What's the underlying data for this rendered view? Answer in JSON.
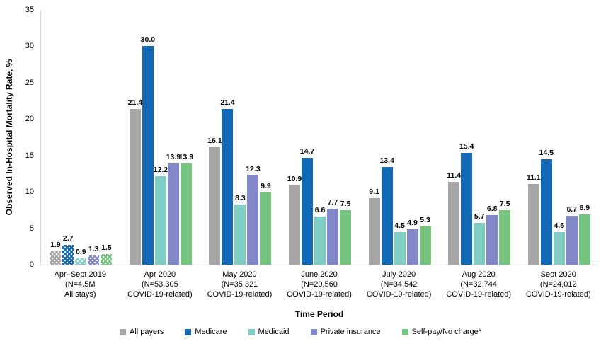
{
  "chart_data": {
    "type": "bar",
    "title": "",
    "xlabel": "Time Period",
    "ylabel": "Observed In-Hospital Mortality Rate, %",
    "ylim": [
      0,
      35
    ],
    "yticks": [
      0,
      5,
      10,
      15,
      20,
      25,
      30,
      35
    ],
    "grid": false,
    "legend_position": "bottom",
    "value_label_format": "one-decimal",
    "categories": [
      {
        "lines": [
          "Apr–Sept 2019",
          "(N=4.5M",
          "All stays)"
        ],
        "patterned": true
      },
      {
        "lines": [
          "Apr 2020",
          "(N=53,305",
          "COVID-19-related)"
        ],
        "patterned": false
      },
      {
        "lines": [
          "May 2020",
          "(N=35,321",
          "COVID-19-related)"
        ],
        "patterned": false
      },
      {
        "lines": [
          "June 2020",
          "(N=20,560",
          "COVID-19-related)"
        ],
        "patterned": false
      },
      {
        "lines": [
          "July 2020",
          "(N=34,542",
          "COVID-19-related)"
        ],
        "patterned": false
      },
      {
        "lines": [
          "Aug 2020",
          "(N=32,744",
          "COVID-19-related)"
        ],
        "patterned": false
      },
      {
        "lines": [
          "Sept 2020",
          "(N=24,012",
          "COVID-19-related)"
        ],
        "patterned": false
      }
    ],
    "series": [
      {
        "name": "All payers",
        "color": "#a6a6a6",
        "values": [
          1.9,
          21.4,
          16.1,
          10.9,
          9.1,
          11.4,
          11.1
        ]
      },
      {
        "name": "Medicare",
        "color": "#1268b2",
        "values": [
          2.7,
          30.0,
          21.4,
          14.7,
          13.4,
          15.4,
          14.5
        ]
      },
      {
        "name": "Medicaid",
        "color": "#7fcdc4",
        "values": [
          0.9,
          12.2,
          8.3,
          6.6,
          4.5,
          5.7,
          4.5
        ]
      },
      {
        "name": "Private insurance",
        "color": "#8287c9",
        "values": [
          1.3,
          13.9,
          12.3,
          7.7,
          4.9,
          6.8,
          6.7
        ]
      },
      {
        "name": "Self-pay/No charge*",
        "color": "#75c581",
        "values": [
          1.5,
          13.9,
          9.9,
          7.5,
          5.3,
          7.5,
          6.9
        ]
      }
    ]
  }
}
